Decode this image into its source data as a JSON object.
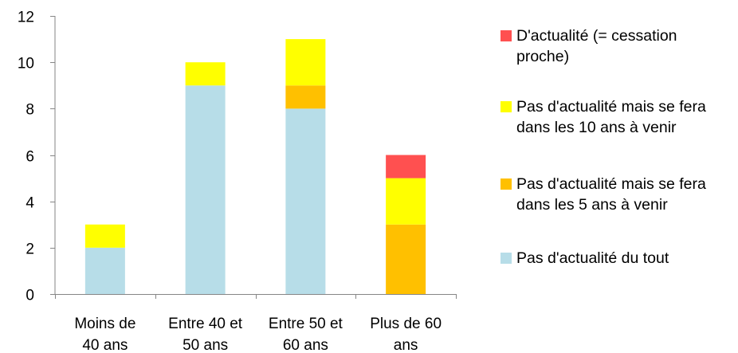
{
  "chart_data": {
    "type": "bar",
    "stacked": true,
    "categories": [
      [
        "Moins de",
        "40 ans"
      ],
      [
        "Entre 40 et",
        "50 ans"
      ],
      [
        "Entre 50 et",
        "60 ans"
      ],
      [
        "Plus de 60",
        "ans"
      ]
    ],
    "series": [
      {
        "name": "Pas d'actualité du tout",
        "color": "#B7DDE8",
        "values": [
          2,
          9,
          8,
          0
        ]
      },
      {
        "name": "Pas d'actualité mais se fera dans les 5 ans à venir",
        "color": "#FFC000",
        "values": [
          0,
          0,
          1,
          3
        ]
      },
      {
        "name": "Pas d'actualité mais se fera dans les 10 ans à venir",
        "color": "#FFFF00",
        "values": [
          1,
          1,
          2,
          2
        ]
      },
      {
        "name": "D'actualité (= cessation proche)",
        "color": "#FF5050",
        "values": [
          0,
          0,
          0,
          1
        ]
      }
    ],
    "ylim": [
      0,
      12
    ],
    "yticks": [
      0,
      2,
      4,
      6,
      8,
      10,
      12
    ],
    "grid": false,
    "legend_position": "right",
    "legend": [
      {
        "label": "D'actualité (= cessation proche)",
        "color": "#FF5050"
      },
      {
        "label": "Pas d'actualité mais se fera dans les 10 ans à venir",
        "color": "#FFFF00"
      },
      {
        "label": "Pas d'actualité mais se fera dans les 5 ans à venir",
        "color": "#FFC000"
      },
      {
        "label": "Pas d'actualité du tout",
        "color": "#B7DDE8"
      }
    ],
    "axis_color": "#868686"
  }
}
